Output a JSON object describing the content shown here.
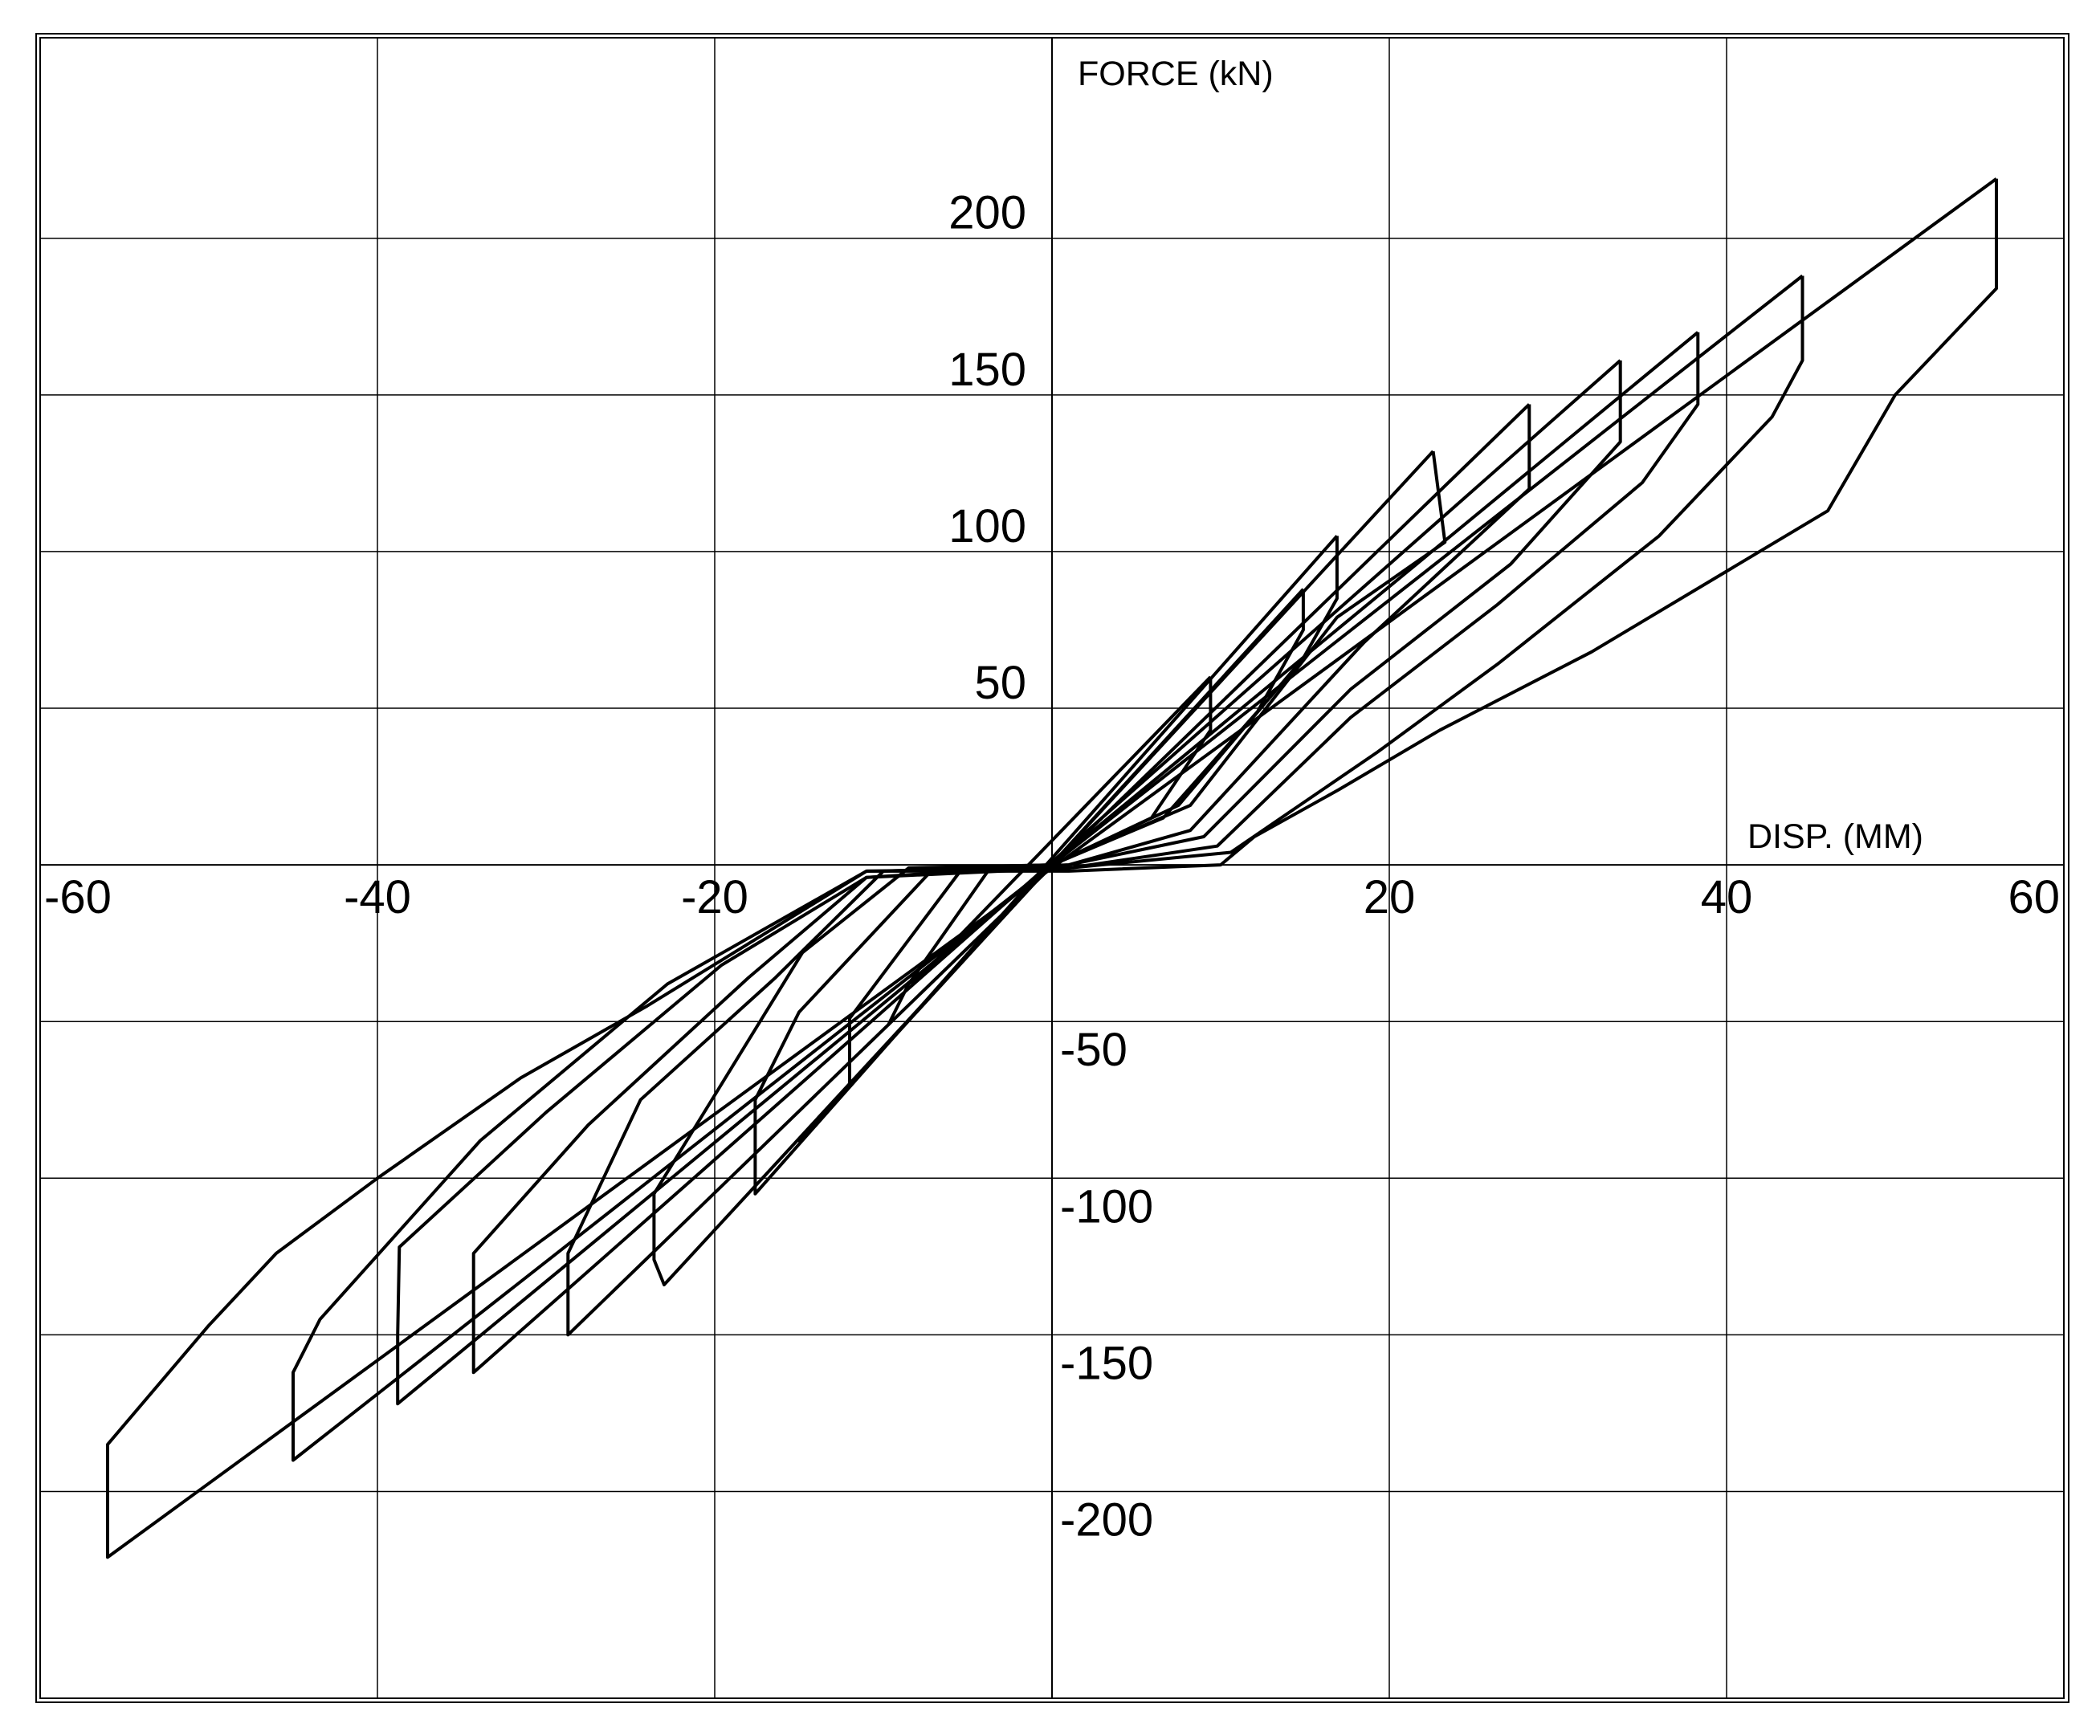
{
  "chart_data": {
    "type": "line",
    "xlabel": "DISP. (MM)",
    "ylabel": "FORCE (kN)",
    "xlim": [
      -60,
      60
    ],
    "ylim": [
      -266,
      264
    ],
    "xticks": [
      -60,
      -40,
      -20,
      20,
      40,
      60
    ],
    "yticks": [
      -200,
      -150,
      -100,
      -50,
      50,
      100,
      150,
      200
    ],
    "grid": true,
    "series": [
      {
        "color": "#000000",
        "x": [
          56,
          56,
          50,
          46,
          32,
          23,
          17,
          12,
          10,
          1,
          -11,
          -24,
          -31.5,
          -40,
          -46,
          -50,
          -56,
          -56,
          56
        ],
        "values": [
          219,
          184,
          150,
          113,
          68,
          43,
          24,
          9,
          0,
          -2,
          -2,
          -45,
          -68,
          -100,
          -124,
          -147,
          -185,
          -221,
          219
        ]
      },
      {
        "color": "#000000",
        "x": [
          44.5,
          44.5,
          42.7,
          36,
          26.4,
          19.3,
          10.6,
          1,
          -11,
          -22.8,
          -33.9,
          -43.4,
          -45,
          -45,
          44.5
        ],
        "values": [
          188,
          161,
          143,
          105,
          64,
          36,
          4,
          -1,
          -2,
          -38,
          -88,
          -145,
          -162,
          -190,
          188
        ]
      },
      {
        "color": "#000000",
        "x": [
          38.3,
          38.3,
          35,
          26.4,
          17.7,
          9.8,
          1,
          -11,
          -19.6,
          -30,
          -38.7,
          -38.8,
          -38.8,
          38.3
        ],
        "values": [
          170,
          147,
          122,
          83,
          47,
          6,
          -1,
          -4,
          -32,
          -79,
          -122,
          -150,
          -172,
          170
        ]
      },
      {
        "color": "#000000",
        "x": [
          33.7,
          33.7,
          27.2,
          17.7,
          9,
          1,
          -11,
          -18,
          -27.5,
          -34.3,
          -34.3,
          33.7
        ],
        "values": [
          161,
          135,
          96,
          56,
          9,
          0,
          -4,
          -36,
          -83,
          -124,
          -162,
          161
        ]
      },
      {
        "color": "#000000",
        "x": [
          28.3,
          28.3,
          18.5,
          8.2,
          1,
          -10,
          -16.4,
          -24.4,
          -28.7,
          -28.7,
          28.3
        ],
        "values": [
          147,
          120,
          71,
          11,
          0,
          -2,
          -36,
          -75,
          -124,
          -150,
          147
        ]
      },
      {
        "color": "#000000",
        "x": [
          22.6,
          23.3,
          16.9,
          8.2,
          0,
          -8.5,
          -14.8,
          -23.6,
          -23.6,
          -23,
          22.6
        ],
        "values": [
          132,
          103,
          79,
          19,
          0,
          -1,
          -28,
          -105,
          -126,
          -134,
          132
        ]
      },
      {
        "color": "#000000",
        "x": [
          16.9,
          16.9,
          14.9,
          7.5,
          0,
          -7,
          -15,
          -17.6,
          -17.6,
          16.9
        ],
        "values": [
          105,
          85,
          66,
          19,
          0,
          -1,
          -47,
          -75,
          -105,
          105
        ]
      },
      {
        "color": "#000000",
        "x": [
          14.9,
          14.9,
          12.2,
          6.6,
          0,
          -5.3,
          -12,
          -12,
          -15,
          14.9
        ],
        "values": [
          88,
          75,
          49,
          15,
          0,
          -1,
          -49,
          -70,
          -88,
          88
        ]
      },
      {
        "color": "#000000",
        "x": [
          9.4,
          9.4,
          5.9,
          0,
          -3.8,
          -8.5,
          -9.7,
          -8.5,
          -7.7,
          9.4
        ],
        "values": [
          60,
          43,
          15,
          0,
          -2,
          -38,
          -51,
          -38,
          -35,
          60
        ]
      }
    ]
  }
}
